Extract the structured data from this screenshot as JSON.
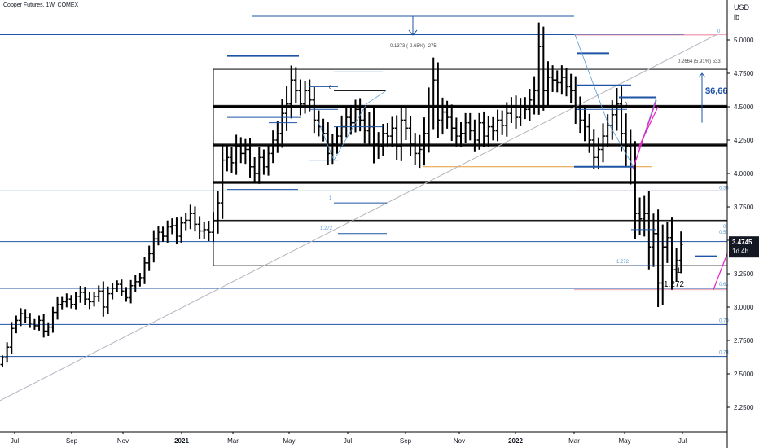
{
  "header": {
    "symbol_title": "Copper Futures, 1W, COMEX",
    "unit_line1": "USD",
    "unit_line2": "lb"
  },
  "price_badge": {
    "price": "3.4745",
    "countdown": "1d 4h"
  },
  "annotations": {
    "measure_top": "-0.1373 (-2.65%) -275",
    "measure_right": "0.2664 (5.91%) 533",
    "dollar_value": "$6,66",
    "fib_zero_top": "0",
    "fib_0_38": "0.38",
    "fib_0_5": "0.5",
    "fib_0_61": "0.61",
    "fib_0_70": "0.70",
    "fib_0_78": "0.78",
    "fib_1_272_left": "1.272",
    "fib_1_272_mid": "1.272",
    "fib_one_mid": "1",
    "fib_zero_mid": "0",
    "fib_zero_right": "0",
    "fib_zero_right2": "0",
    "wave_one": "1",
    "wave_1272": "1.272"
  },
  "colors": {
    "bars": "#000000",
    "blue_level": "#1e53a5",
    "light_blue": "#5b9bd5",
    "trend": "#b2b5be",
    "pink": "#f4a7b9",
    "magenta": "#e91ec6",
    "orange": "#e59b38",
    "price_badge": "#131722"
  },
  "chart_data": {
    "type": "ohlc",
    "title": "Copper Futures, 1W, COMEX",
    "ylabel": "USD lb",
    "ylim": [
      2.1,
      5.25
    ],
    "y_ticks": [
      "5.0000",
      "4.7500",
      "4.5000",
      "4.2500",
      "4.0000",
      "3.7500",
      "3.5000",
      "3.2500",
      "3.0000",
      "2.7500",
      "2.5000",
      "2.2500"
    ],
    "x_ticks": [
      "Jul",
      "Sep",
      "Nov",
      "2021",
      "Mar",
      "May",
      "Jul",
      "Sep",
      "Nov",
      "2022",
      "Mar",
      "May",
      "Jul"
    ],
    "last_price": 3.4745,
    "series": [
      {
        "closes": [
          2.62,
          2.7,
          2.84,
          2.9,
          2.95,
          2.92,
          2.88,
          2.86,
          2.9,
          2.82,
          2.85,
          2.96,
          3.02,
          3.04,
          3.06,
          3.02,
          3.08,
          3.11,
          3.06,
          3.04,
          3.08,
          3.12,
          3.0,
          3.1,
          3.14,
          3.17,
          3.12,
          3.07,
          3.16,
          3.19,
          3.22,
          3.33,
          3.4,
          3.51,
          3.56,
          3.53,
          3.6,
          3.61,
          3.53,
          3.63,
          3.65,
          3.7,
          3.62,
          3.57,
          3.58,
          3.56,
          3.64,
          3.78,
          4.1,
          4.12,
          4.08,
          4.2,
          4.15,
          4.18,
          4.05,
          4.0,
          4.12,
          4.05,
          4.15,
          4.25,
          4.3,
          4.45,
          4.52,
          4.7,
          4.62,
          4.52,
          4.62,
          4.55,
          4.4,
          4.35,
          4.3,
          4.15,
          4.22,
          4.28,
          4.35,
          4.42,
          4.38,
          4.48,
          4.4,
          4.32,
          4.35,
          4.22,
          4.2,
          4.3,
          4.28,
          4.34,
          4.2,
          4.4,
          4.34,
          4.22,
          4.15,
          4.18,
          4.3,
          4.5,
          4.7,
          4.4,
          4.46,
          4.42,
          4.34,
          4.28,
          4.3,
          4.38,
          4.32,
          4.25,
          4.38,
          4.28,
          4.35,
          4.32,
          4.4,
          4.36,
          4.45,
          4.5,
          4.42,
          4.5,
          4.48,
          4.55,
          4.62,
          4.95,
          4.62,
          4.72,
          4.7,
          4.68,
          4.72,
          4.65,
          4.62,
          4.48,
          4.4,
          4.35,
          4.25,
          4.12,
          4.18,
          4.28,
          4.36,
          4.44,
          4.52,
          4.3,
          4.2,
          4.05,
          3.7,
          3.66,
          3.7,
          3.45,
          3.55,
          3.18,
          3.45,
          3.52,
          3.28,
          3.35,
          3.47
        ],
        "spreads": [
          0.03,
          0.06,
          0.08,
          0.06,
          0.07,
          0.06,
          0.06,
          0.05,
          0.06,
          0.08,
          0.06,
          0.07,
          0.09,
          0.06,
          0.07,
          0.05,
          0.06,
          0.08,
          0.07,
          0.09,
          0.06,
          0.07,
          0.12,
          0.09,
          0.07,
          0.05,
          0.06,
          0.05,
          0.07,
          0.08,
          0.06,
          0.08,
          0.1,
          0.11,
          0.08,
          0.07,
          0.08,
          0.09,
          0.1,
          0.08,
          0.09,
          0.11,
          0.09,
          0.1,
          0.1,
          0.11,
          0.12,
          0.15,
          0.2,
          0.14,
          0.13,
          0.15,
          0.12,
          0.13,
          0.14,
          0.12,
          0.13,
          0.1,
          0.11,
          0.12,
          0.16,
          0.18,
          0.22,
          0.18,
          0.16,
          0.14,
          0.12,
          0.14,
          0.16,
          0.12,
          0.1,
          0.14,
          0.13,
          0.12,
          0.14,
          0.13,
          0.15,
          0.12,
          0.14,
          0.16,
          0.18,
          0.24,
          0.15,
          0.12,
          0.13,
          0.14,
          0.16,
          0.18,
          0.15,
          0.15,
          0.14,
          0.18,
          0.2,
          0.24,
          0.28,
          0.22,
          0.18,
          0.14,
          0.16,
          0.13,
          0.14,
          0.12,
          0.12,
          0.14,
          0.12,
          0.14,
          0.13,
          0.12,
          0.13,
          0.12,
          0.14,
          0.12,
          0.14,
          0.11,
          0.12,
          0.14,
          0.18,
          0.3,
          0.25,
          0.2,
          0.15,
          0.12,
          0.15,
          0.12,
          0.16,
          0.18,
          0.16,
          0.18,
          0.16,
          0.14,
          0.15,
          0.16,
          0.14,
          0.18,
          0.2,
          0.22,
          0.25,
          0.22,
          0.32,
          0.2,
          0.22,
          0.28,
          0.25,
          0.3,
          0.28,
          0.2,
          0.25,
          0.15,
          0.16
        ],
        "x_start_date": "2020-06-29"
      }
    ],
    "horizontal_levels": [
      5.04,
      3.87,
      3.49,
      3.14,
      2.87,
      2.63
    ],
    "boxes": [
      [
        4.78,
        4.51
      ],
      [
        4.5,
        4.22
      ],
      [
        4.21,
        3.94
      ],
      [
        3.93,
        3.65
      ],
      [
        3.64,
        3.31
      ]
    ],
    "grid": false
  }
}
